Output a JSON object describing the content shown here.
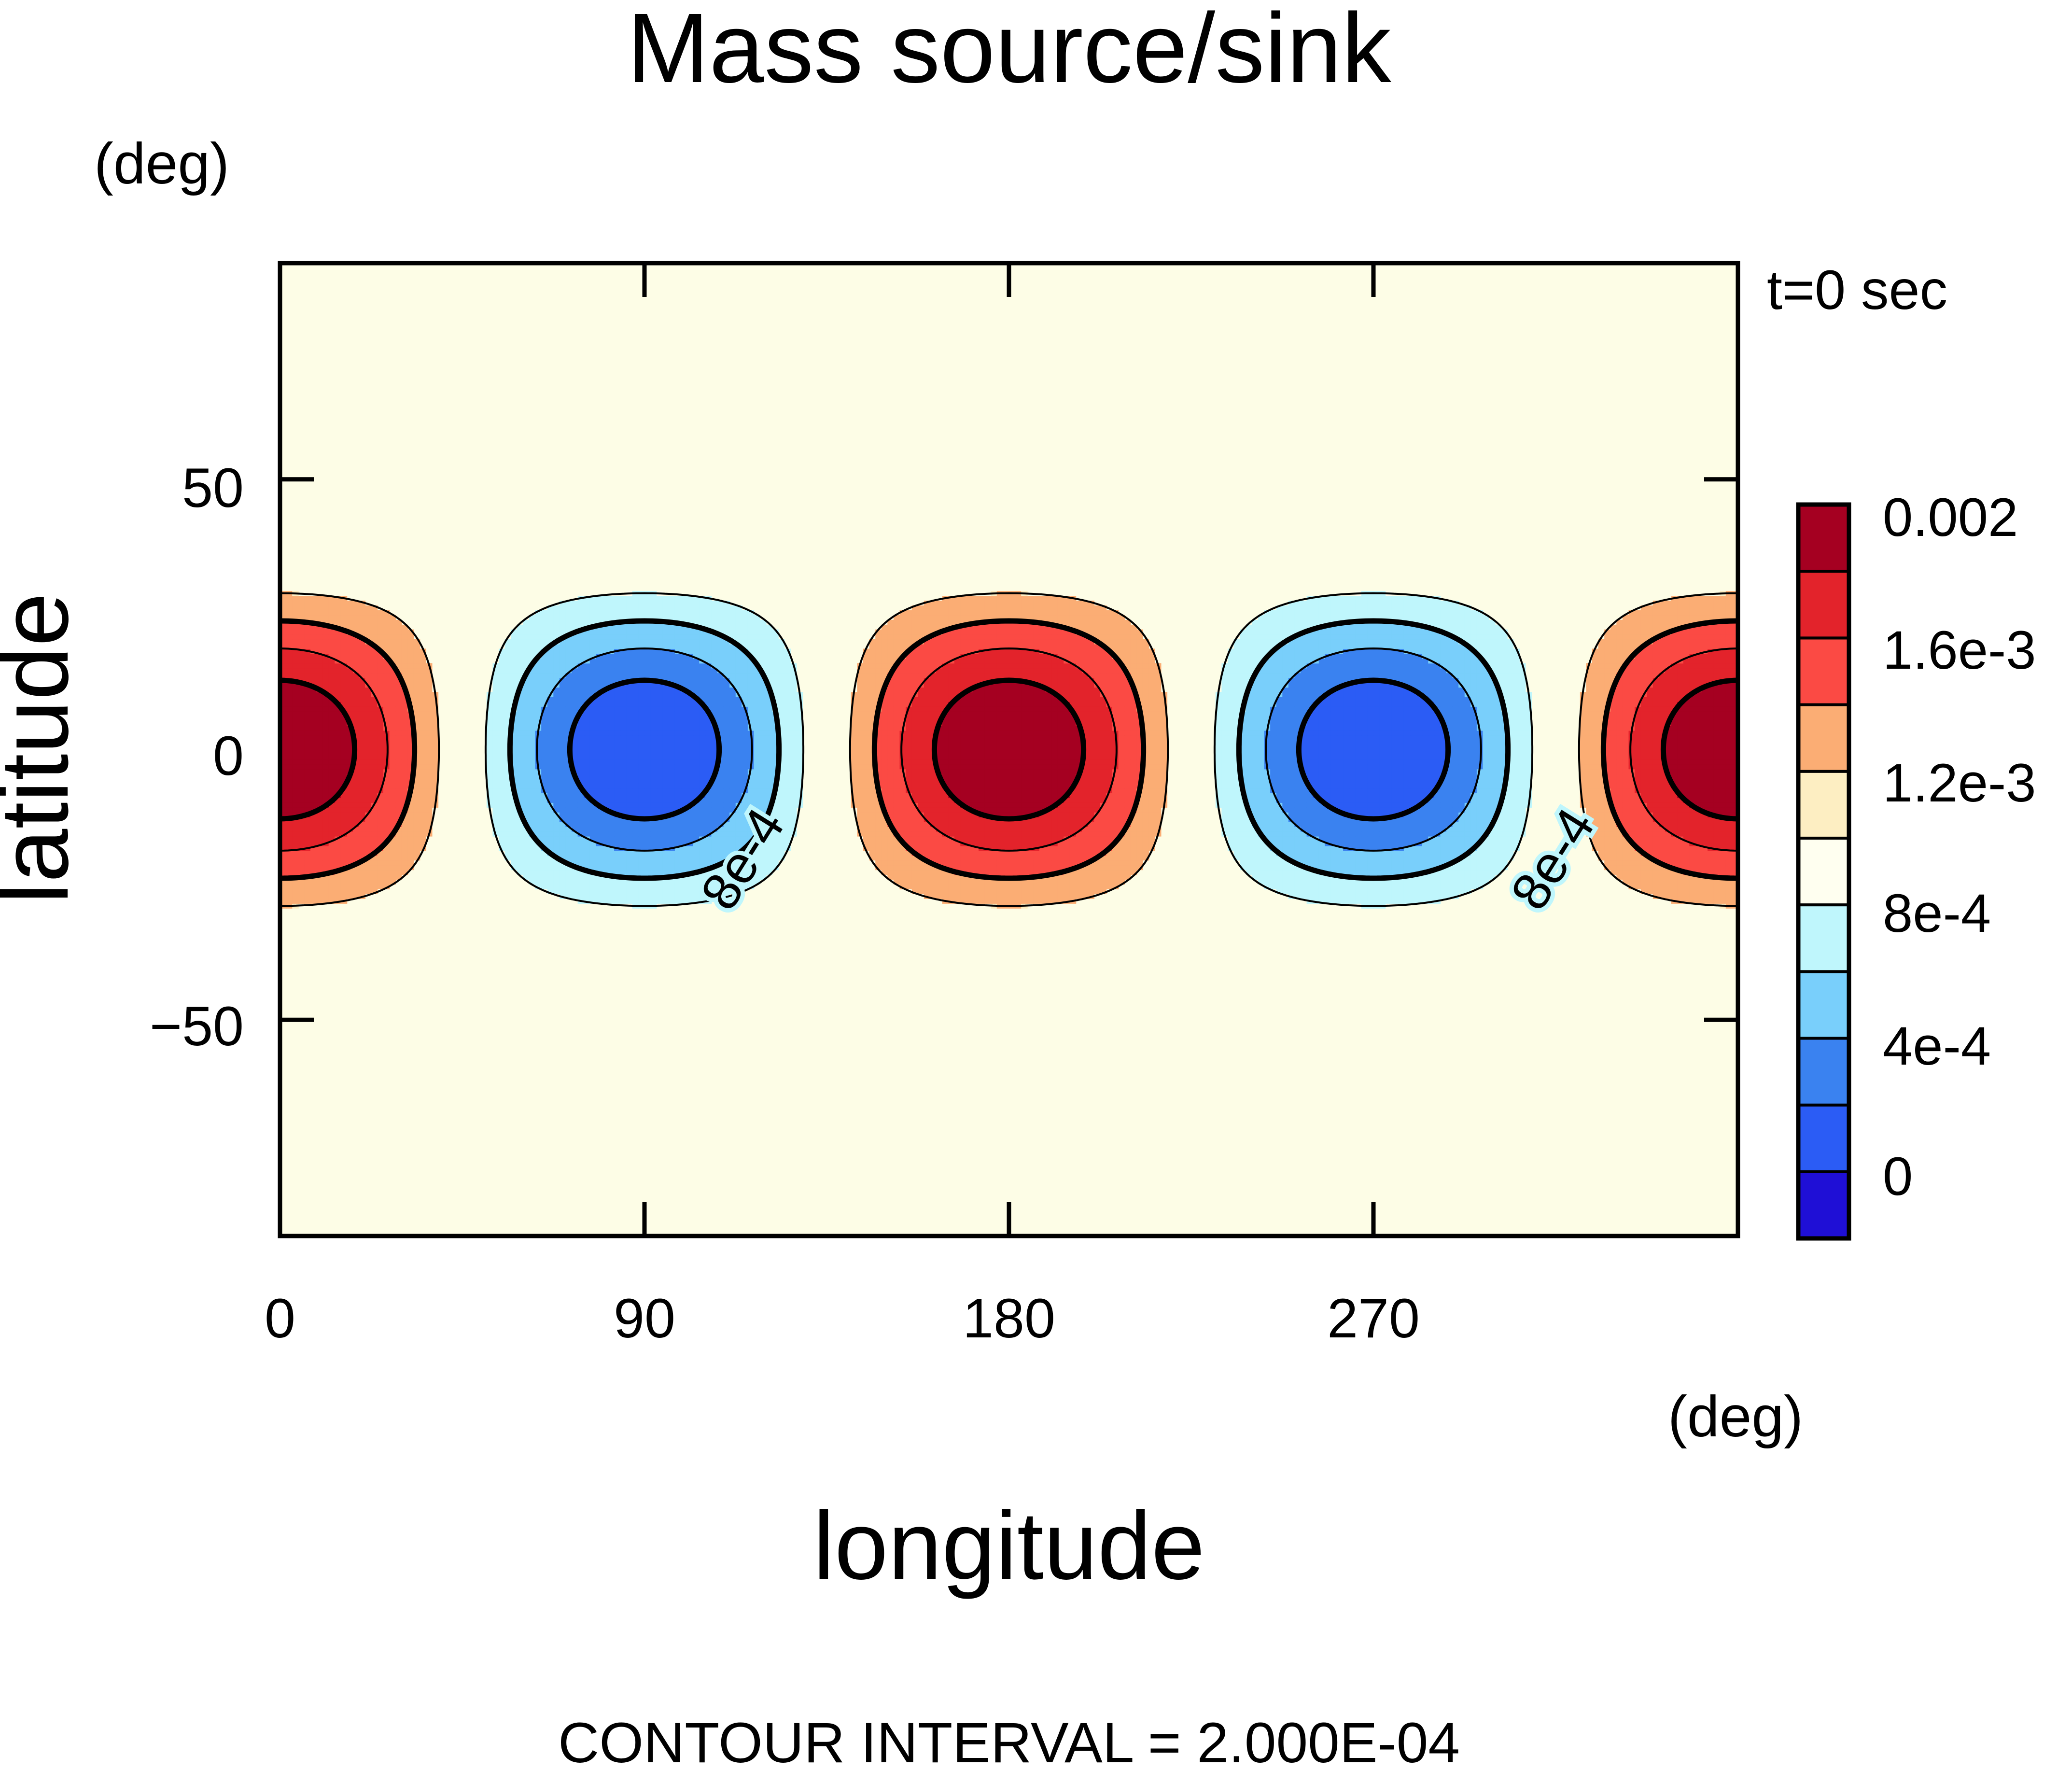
{
  "chart_data": {
    "type": "heatmap",
    "title": "Mass source/sink",
    "xlabel": "longitude",
    "ylabel": "latitude",
    "x_units": "(deg)",
    "y_units": "(deg)",
    "time_label": "t=0 sec",
    "footer": "CONTOUR INTERVAL = 2.000E-04",
    "xlim": [
      0,
      360
    ],
    "ylim": [
      -90,
      90
    ],
    "x_ticks": [
      0,
      90,
      180,
      270
    ],
    "x_tick_labels": [
      "0",
      "90",
      "180",
      "270"
    ],
    "y_ticks": [
      50,
      0,
      -50
    ],
    "y_tick_labels": [
      "50",
      "0",
      "−50"
    ],
    "field": {
      "description": "f = 1e-3 + 1e-3*cos(2*lon)*g(lat), zero outside |lat|~35",
      "mean": 0.001,
      "amplitude": 0.001,
      "wavenumber": 2,
      "lat_halfwidth": 36
    },
    "contour_interval": 0.0002,
    "contour_line_labels": [
      "8e-4",
      "8e-4"
    ],
    "colorbar": {
      "levels": [
        0,
        0.0002,
        0.0004,
        0.0006,
        0.0008,
        0.001,
        0.0012,
        0.0014,
        0.0016,
        0.0018,
        0.002
      ],
      "colors": [
        "#1f0fd6",
        "#2b5cf5",
        "#3a82f0",
        "#79cffb",
        "#bff6fc",
        "#fffff0",
        "#fdeec2",
        "#fbad74",
        "#fb4a44",
        "#e3232b",
        "#a50021"
      ],
      "tick_labels": [
        "0",
        "4e-4",
        "8e-4",
        "1.2e-3",
        "1.6e-3",
        "0.002"
      ]
    },
    "background_color": "#fdfde6"
  }
}
